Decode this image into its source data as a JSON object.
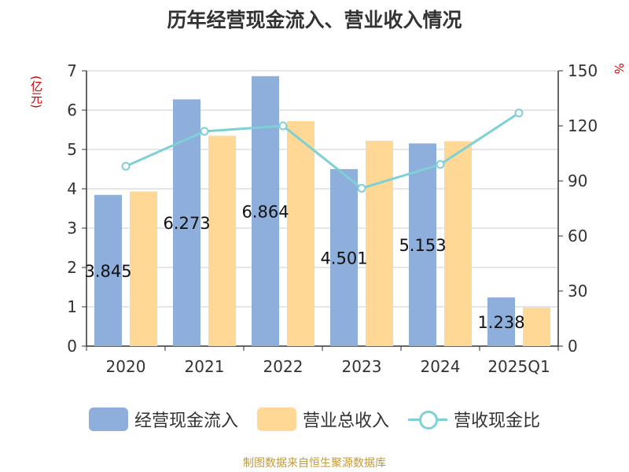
{
  "title": "历年经营现金流入、营业收入情况",
  "left_unit": "(亿元)",
  "right_unit": "%",
  "source": "制图数据来自恒生聚源数据库",
  "colors": {
    "cash_inflow": "#8eaedc",
    "revenue": "#ffd896",
    "ratio": "#7fd0d4"
  },
  "chart_data": {
    "type": "bar",
    "categories": [
      "2020",
      "2021",
      "2022",
      "2023",
      "2024",
      "2025Q1"
    ],
    "series": [
      {
        "name": "经营现金流入",
        "type": "bar",
        "axis": "left",
        "values": [
          3.845,
          6.273,
          6.864,
          4.501,
          5.153,
          1.238
        ],
        "labels": [
          "3.845",
          "6.273",
          "6.864",
          "4.501",
          "5.153",
          "1.238"
        ]
      },
      {
        "name": "营业总收入",
        "type": "bar",
        "axis": "left",
        "values": [
          3.93,
          5.35,
          5.72,
          5.22,
          5.21,
          0.98
        ]
      },
      {
        "name": "营收现金比",
        "type": "line",
        "axis": "right",
        "values": [
          98,
          117,
          120,
          86,
          99,
          127
        ]
      }
    ],
    "y_left": {
      "min": 0,
      "max": 7,
      "ticks": [
        0,
        1,
        2,
        3,
        4,
        5,
        6,
        7
      ]
    },
    "y_right": {
      "min": 0,
      "max": 150,
      "ticks": [
        0,
        30,
        60,
        90,
        120,
        150
      ]
    },
    "grid": true,
    "legend_position": "bottom"
  }
}
